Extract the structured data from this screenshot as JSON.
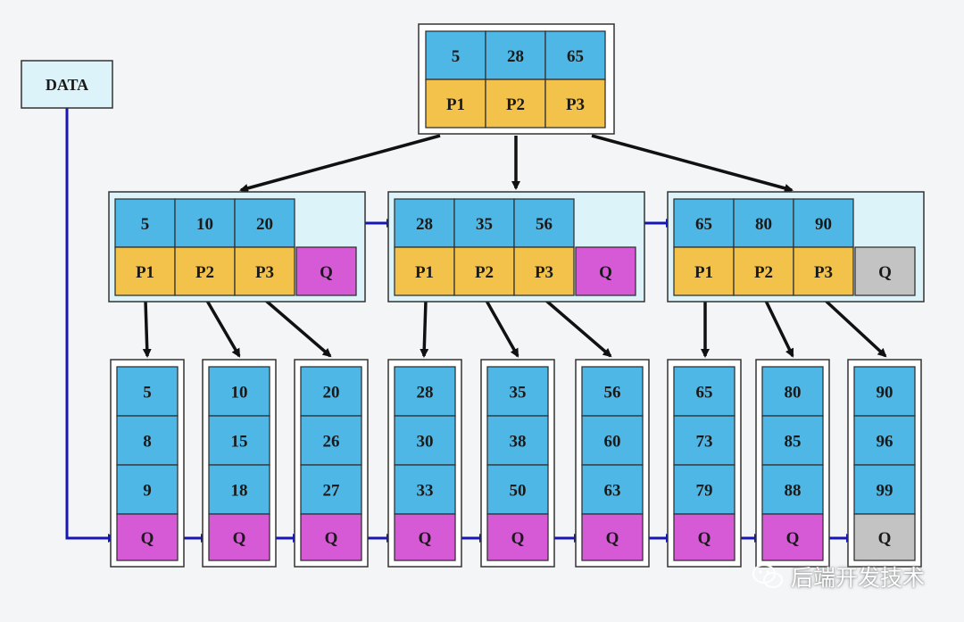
{
  "data_box": {
    "label": "DATA"
  },
  "root": {
    "keys": [
      "5",
      "28",
      "65"
    ],
    "pointers": [
      "P1",
      "P2",
      "P3"
    ]
  },
  "internal_nodes": [
    {
      "keys": [
        "5",
        "10",
        "20"
      ],
      "pointers": [
        "P1",
        "P2",
        "P3"
      ],
      "next": "Q",
      "next_active": true
    },
    {
      "keys": [
        "28",
        "35",
        "56"
      ],
      "pointers": [
        "P1",
        "P2",
        "P3"
      ],
      "next": "Q",
      "next_active": true
    },
    {
      "keys": [
        "65",
        "80",
        "90"
      ],
      "pointers": [
        "P1",
        "P2",
        "P3"
      ],
      "next": "Q",
      "next_active": false
    }
  ],
  "leaves": [
    {
      "keys": [
        "5",
        "8",
        "9"
      ],
      "next": "Q",
      "next_active": true
    },
    {
      "keys": [
        "10",
        "15",
        "18"
      ],
      "next": "Q",
      "next_active": true
    },
    {
      "keys": [
        "20",
        "26",
        "27"
      ],
      "next": "Q",
      "next_active": true
    },
    {
      "keys": [
        "28",
        "30",
        "33"
      ],
      "next": "Q",
      "next_active": true
    },
    {
      "keys": [
        "35",
        "38",
        "50"
      ],
      "next": "Q",
      "next_active": true
    },
    {
      "keys": [
        "56",
        "60",
        "63"
      ],
      "next": "Q",
      "next_active": true
    },
    {
      "keys": [
        "65",
        "73",
        "79"
      ],
      "next": "Q",
      "next_active": true
    },
    {
      "keys": [
        "80",
        "85",
        "88"
      ],
      "next": "Q",
      "next_active": true
    },
    {
      "keys": [
        "90",
        "96",
        "99"
      ],
      "next": "Q",
      "next_active": false
    }
  ],
  "watermark": {
    "text": "后端开发技术",
    "icon": "wechat-icon"
  },
  "colors": {
    "key": "#4fb7e5",
    "pointer": "#f3c24a",
    "link": "#d65ad6",
    "null_link": "#c3c3c3",
    "node_bg": "#dcf3f9",
    "line": "#333333",
    "arrow_black": "#111111",
    "arrow_blue": "#1616b4"
  }
}
